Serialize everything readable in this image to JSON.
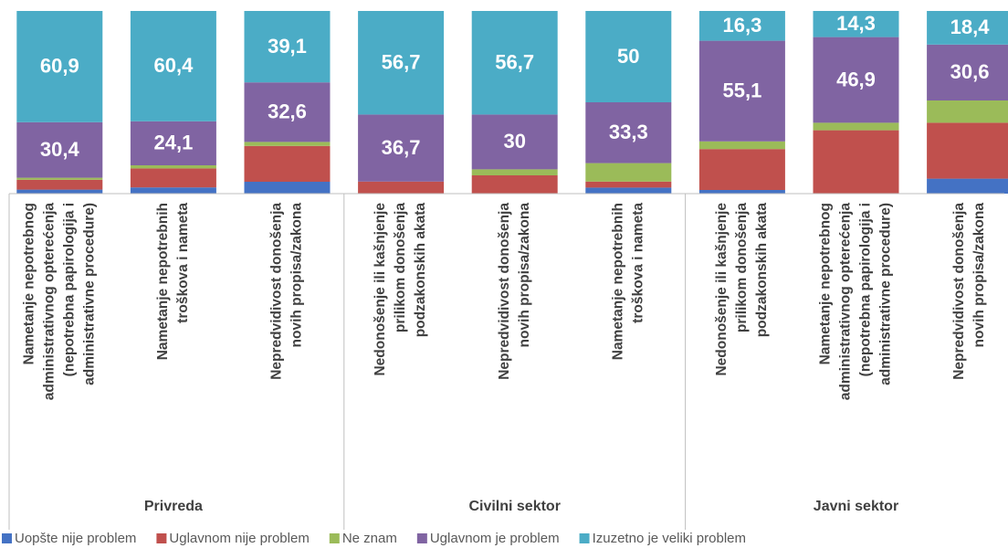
{
  "chart_data": {
    "type": "stacked_bar",
    "categories": [
      [
        "Nametanje nepotrebnog",
        "administrativnog opterećenja",
        "(nepotrebna papirologija i",
        "administrativne procedure)"
      ],
      [
        "Nametanje nepotrebnih",
        "troškova i nameta"
      ],
      [
        "Nepredvidivost donošenja",
        "novih propisa/zakona"
      ],
      [
        "Nedonošenje ili kašnjenje",
        "prilikom donošenja",
        "podzakonskih akata"
      ],
      [
        "Nepredvidivost donošenja",
        "novih propisa/zakona"
      ],
      [
        "Nametanje nepotrebnih",
        "troškova i nameta"
      ],
      [
        "Nedonošenje ili kašnjenje",
        "prilikom donošenja",
        "podzakonskih akata"
      ],
      [
        "Nametanje nepotrebnog",
        "administrativnog opterećenja",
        "(nepotrebna papirologija i",
        "administrativne procedure)"
      ],
      [
        "Nepredvidivost donošenja",
        "novih propisa/zakona"
      ]
    ],
    "groups": [
      "Privreda",
      "Civilni sektor",
      "Javni sektor"
    ],
    "ylim": [
      0,
      100
    ],
    "series": [
      {
        "name": "Uopšte nije problem",
        "color": "#4472c4",
        "values": [
          2.2,
          3.4,
          6.5,
          0,
          0,
          3.3,
          2,
          0,
          8.2
        ]
      },
      {
        "name": "Uglavnom nije problem",
        "color": "#c0504d",
        "values": [
          5.4,
          10.4,
          19.6,
          6.6,
          10,
          3.3,
          22.4,
          34.7,
          30.6
        ]
      },
      {
        "name": "Ne znam",
        "color": "#9bbb59",
        "values": [
          1.1,
          1.7,
          2.2,
          0,
          3.3,
          10.1,
          4.2,
          4.1,
          12.2
        ]
      },
      {
        "name": "Uglavnom je problem",
        "color": "#8064a2",
        "values": [
          30.4,
          24.1,
          32.6,
          36.7,
          30,
          33.3,
          55.1,
          46.9,
          30.6
        ],
        "value_labels": [
          "30,4",
          "24,1",
          "32,6",
          "36,7",
          "30",
          "33,3",
          "55,1",
          "46,9",
          "30,6"
        ]
      },
      {
        "name": "Izuzetno je veliki problem",
        "color": "#4bacc6",
        "values": [
          60.9,
          60.4,
          39.1,
          56.7,
          56.7,
          50,
          16.3,
          14.3,
          18.4
        ],
        "value_labels": [
          "60,9",
          "60,4",
          "39,1",
          "56,7",
          "56,7",
          "50",
          "16,3",
          "14,3",
          "18,4"
        ]
      }
    ]
  }
}
